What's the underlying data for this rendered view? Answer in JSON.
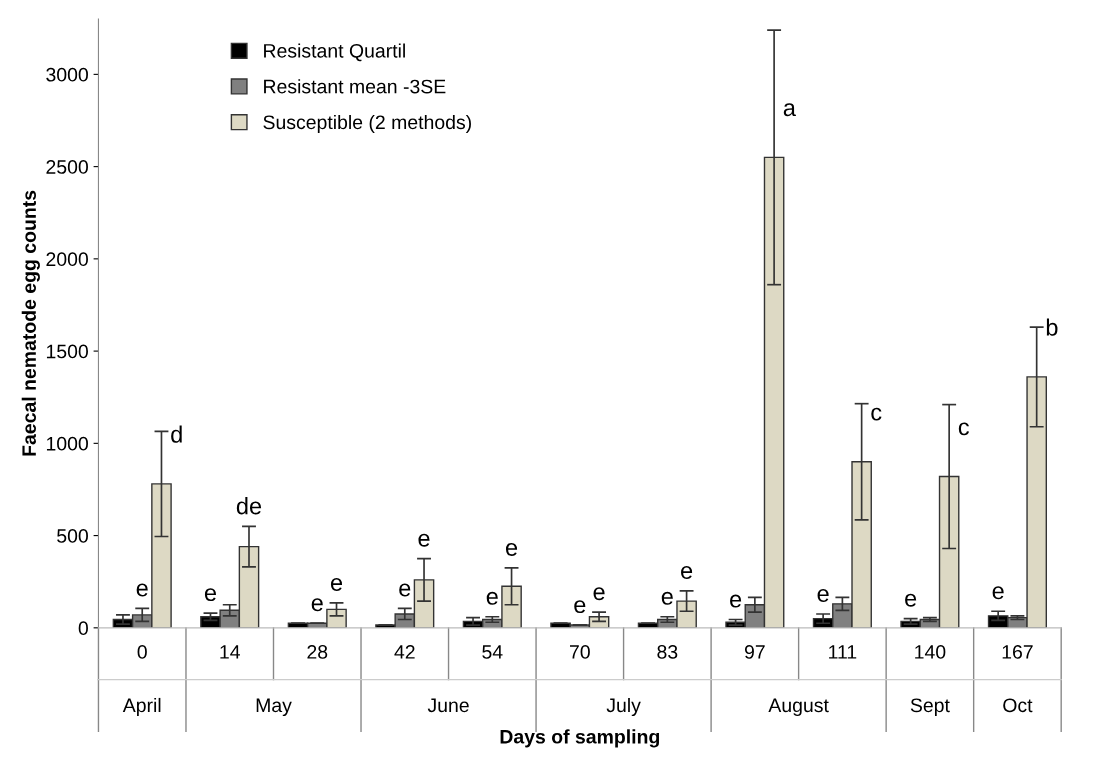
{
  "chart_data": {
    "type": "bar",
    "xlabel": "Days of sampling",
    "ylabel": "Faecal nematode egg counts",
    "categories": [
      "0",
      "14",
      "28",
      "42",
      "54",
      "70",
      "83",
      "97",
      "111",
      "140",
      "167"
    ],
    "series": [
      {
        "name": "Resistant Quartil",
        "color": "#000000",
        "values": [
          45,
          60,
          25,
          15,
          35,
          25,
          25,
          30,
          50,
          35,
          65
        ],
        "errors": [
          25,
          20,
          null,
          null,
          20,
          null,
          null,
          15,
          25,
          15,
          25
        ]
      },
      {
        "name": "Resistant mean -3SE",
        "color": "#808080",
        "values": [
          70,
          95,
          25,
          75,
          45,
          15,
          45,
          125,
          130,
          45,
          55
        ],
        "errors": [
          35,
          30,
          null,
          30,
          15,
          null,
          15,
          40,
          35,
          10,
          10
        ]
      },
      {
        "name": "Susceptible (2 methods)",
        "color": "#ddd9c4",
        "values": [
          780,
          440,
          100,
          260,
          225,
          60,
          145,
          2550,
          900,
          820,
          1360
        ],
        "errors": [
          285,
          110,
          35,
          115,
          100,
          25,
          55,
          690,
          315,
          390,
          270
        ]
      }
    ],
    "annotations": [
      "e",
      "d",
      "e",
      "de",
      "e",
      "e",
      "e",
      "e",
      "e",
      "e",
      "e",
      "e",
      "e",
      "e",
      "e",
      "a",
      "e",
      "c",
      "e",
      "c",
      "e",
      "b",
      "April",
      "May",
      "June",
      "July",
      "August",
      "Sept",
      "Oct"
    ],
    "ylim": [
      0,
      3300
    ],
    "yticks": [
      0,
      500,
      1000,
      1500,
      2000,
      2500,
      3000
    ],
    "grid": false,
    "legend": "top left"
  }
}
